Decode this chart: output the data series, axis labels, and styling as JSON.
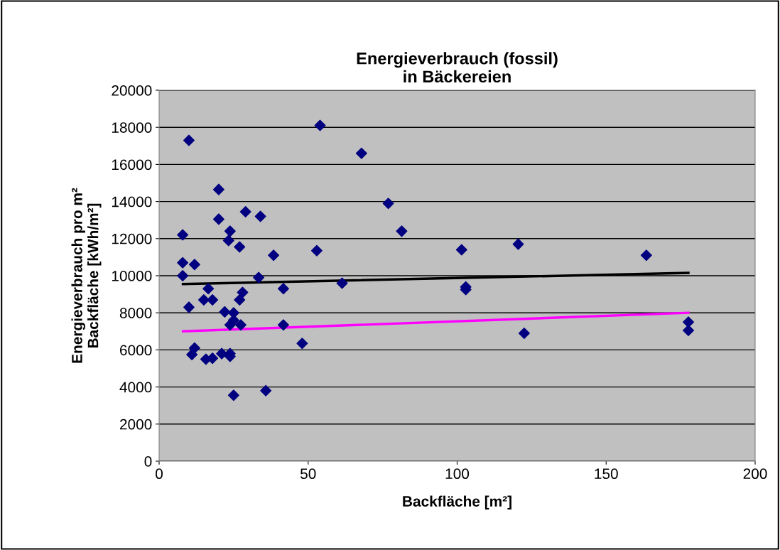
{
  "chart_data": {
    "type": "scatter",
    "title": "Energieverbrauch (fossil)\nin Bäckereien",
    "xlabel": "Backfläche [m²]",
    "ylabel": "Energieverbrauch pro m²\nBackfläche [kWh/m²]",
    "xlim": [
      0,
      200
    ],
    "xticks": [
      0,
      50,
      100,
      150,
      200
    ],
    "ylim": [
      0,
      20000
    ],
    "yticks": [
      0,
      2000,
      4000,
      6000,
      8000,
      10000,
      12000,
      14000,
      16000,
      18000,
      20000
    ],
    "grid": "y",
    "legend": false,
    "series": [
      {
        "marker": "diamond",
        "color": "#000080",
        "x": [
          7.9,
          10,
          7.9,
          7.9,
          11.9,
          10,
          11.9,
          11,
          15.7,
          17.9,
          15,
          16.5,
          17.9,
          20,
          20,
          21,
          22,
          23.8,
          23.3,
          23.8,
          23.8,
          25,
          25,
          25,
          23.8,
          27,
          27,
          28,
          27.4,
          29,
          34,
          33.4,
          38.4,
          35.8,
          41.7,
          41.7,
          48,
          54,
          52.9,
          67.9,
          61.4,
          76.9,
          81.4,
          101.5,
          120.5,
          163.5,
          102.9,
          102.9,
          122.5,
          177.6,
          177.6
        ],
        "values": [
          12200,
          17300,
          10700,
          10000,
          10600,
          8300,
          6100,
          5750,
          5500,
          5550,
          8700,
          9300,
          8700,
          14650,
          13050,
          5800,
          8050,
          12400,
          11900,
          5800,
          5650,
          3550,
          8000,
          7600,
          7350,
          11550,
          8700,
          9100,
          7350,
          13450,
          13200,
          9900,
          11100,
          3800,
          9300,
          7350,
          6350,
          18100,
          11350,
          16600,
          9600,
          13900,
          12400,
          11400,
          11700,
          11100,
          9400,
          9250,
          6900,
          7500,
          7050
        ]
      },
      {
        "type": "line",
        "marker": "none",
        "color": "#000000",
        "x": [
          8,
          177.6
        ],
        "values": [
          9550,
          10150
        ]
      },
      {
        "type": "line",
        "marker": "none",
        "color": "#ff00ff",
        "x": [
          8,
          177.6
        ],
        "values": [
          7000,
          8000
        ]
      }
    ]
  }
}
